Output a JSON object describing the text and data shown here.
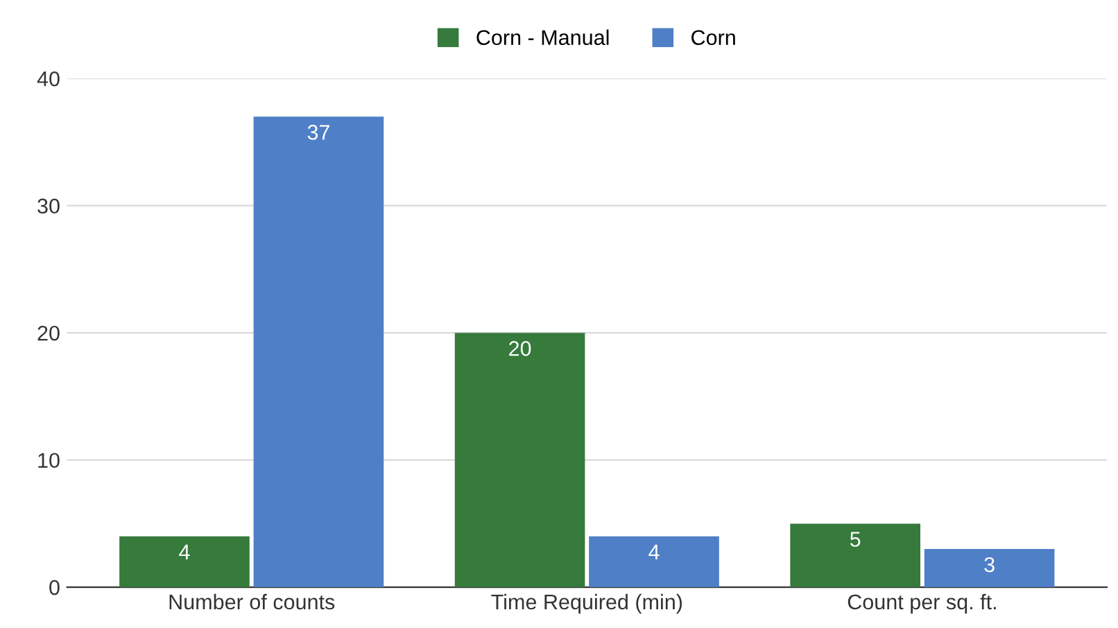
{
  "chart_data": {
    "type": "bar",
    "categories": [
      "Number of counts",
      "Time Required (min)",
      "Count per sq. ft."
    ],
    "series": [
      {
        "name": "Corn - Manual",
        "color": "#367a3c",
        "values": [
          4,
          20,
          5
        ]
      },
      {
        "name": "Corn",
        "color": "#4f7fc6",
        "values": [
          37,
          4,
          3
        ]
      }
    ],
    "ylim": [
      0,
      40
    ],
    "yticks": [
      0,
      10,
      20,
      30,
      40
    ],
    "grid": "y",
    "legend": "top",
    "data_labels": true
  }
}
